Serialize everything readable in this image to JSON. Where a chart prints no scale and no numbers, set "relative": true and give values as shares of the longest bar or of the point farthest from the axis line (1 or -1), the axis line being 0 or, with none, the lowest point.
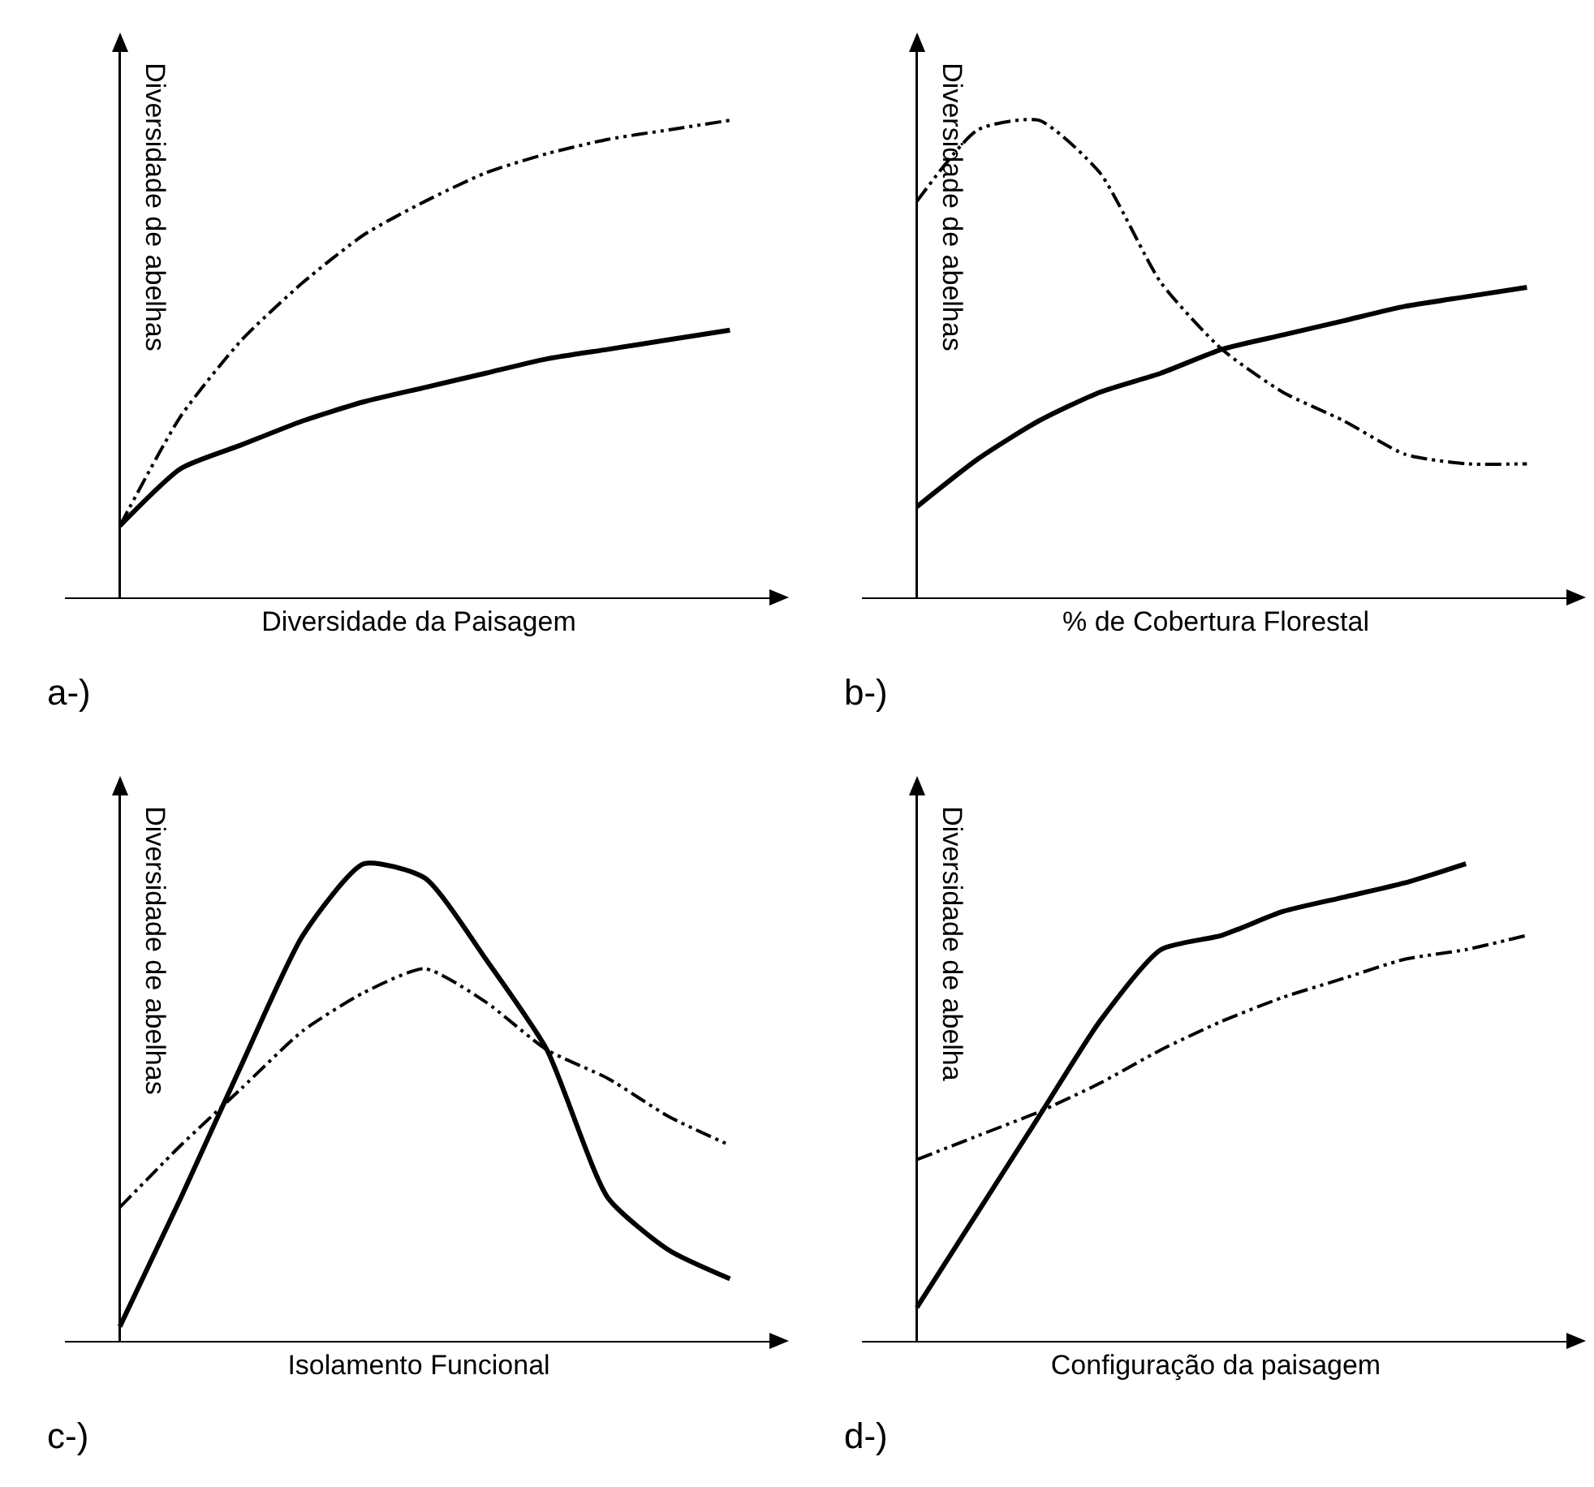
{
  "chart_data": [
    {
      "type": "line",
      "relative": true,
      "xlabel": "Diversidade da Paisagem",
      "ylabel": "Diversidade de abelhas",
      "annotations": [
        "a-)"
      ],
      "categories": [
        null,
        null,
        null,
        null,
        null,
        null,
        null,
        null,
        null,
        null,
        null
      ],
      "series": [
        {
          "color": "#000000",
          "line_style": "solid",
          "values": [
            0.15,
            0.27,
            0.32,
            0.37,
            0.41,
            0.44,
            0.47,
            0.5,
            0.52,
            0.54,
            0.56
          ]
        },
        {
          "color": "#000000",
          "line_style": "dashed",
          "values": [
            0.15,
            0.38,
            0.54,
            0.66,
            0.76,
            0.83,
            0.89,
            0.93,
            0.96,
            0.98,
            1
          ]
        }
      ]
    },
    {
      "type": "line",
      "relative": true,
      "xlabel": "% de Cobertura Florestal",
      "ylabel": "Diversidade de abelhas",
      "annotations": [
        "b-)"
      ],
      "categories": [
        null,
        null,
        null,
        null,
        null,
        null,
        null,
        null,
        null,
        null,
        null
      ],
      "series": [
        {
          "color": "#000000",
          "line_style": "solid",
          "values": [
            0.19,
            0.29,
            0.37,
            0.43,
            0.47,
            0.52,
            0.55,
            0.58,
            0.61,
            0.63,
            0.65
          ]
        },
        {
          "color": "#000000",
          "line_style": "dashed",
          "values": [
            0.83,
            0.98,
            1,
            0.89,
            0.66,
            0.52,
            0.43,
            0.37,
            0.3,
            0.28,
            0.28
          ]
        }
      ]
    },
    {
      "type": "line",
      "relative": true,
      "xlabel": "Isolamento Funcional",
      "ylabel": "Diversidade de abelhas",
      "annotations": [
        "c-)"
      ],
      "categories": [
        null,
        null,
        null,
        null,
        null,
        null,
        null,
        null,
        null,
        null,
        null
      ],
      "series": [
        {
          "color": "#000000",
          "line_style": "solid",
          "values": [
            0.03,
            0.3,
            0.58,
            0.85,
            1,
            0.97,
            0.8,
            0.61,
            0.3,
            0.19,
            0.13
          ]
        },
        {
          "color": "#000000",
          "line_style": "dashed",
          "values": [
            0.28,
            0.41,
            0.53,
            0.65,
            0.73,
            0.78,
            0.71,
            0.61,
            0.55,
            0.47,
            0.41
          ]
        }
      ]
    },
    {
      "type": "line",
      "relative": true,
      "xlabel": "Configuração da paisagem",
      "ylabel": "Diversidade de abelha",
      "annotations": [
        "d-)"
      ],
      "categories": [
        null,
        null,
        null,
        null,
        null,
        null,
        null,
        null,
        null,
        null,
        null
      ],
      "series": [
        {
          "color": "#000000",
          "line_style": "solid",
          "values": [
            0.07,
            0.27,
            0.47,
            0.67,
            0.82,
            0.85,
            0.9,
            0.93,
            0.96,
            1,
            null
          ]
        },
        {
          "color": "#000000",
          "line_style": "dashed",
          "values": [
            0.38,
            0.43,
            0.48,
            0.54,
            0.61,
            0.67,
            0.72,
            0.76,
            0.8,
            0.82,
            0.85
          ]
        }
      ]
    }
  ]
}
